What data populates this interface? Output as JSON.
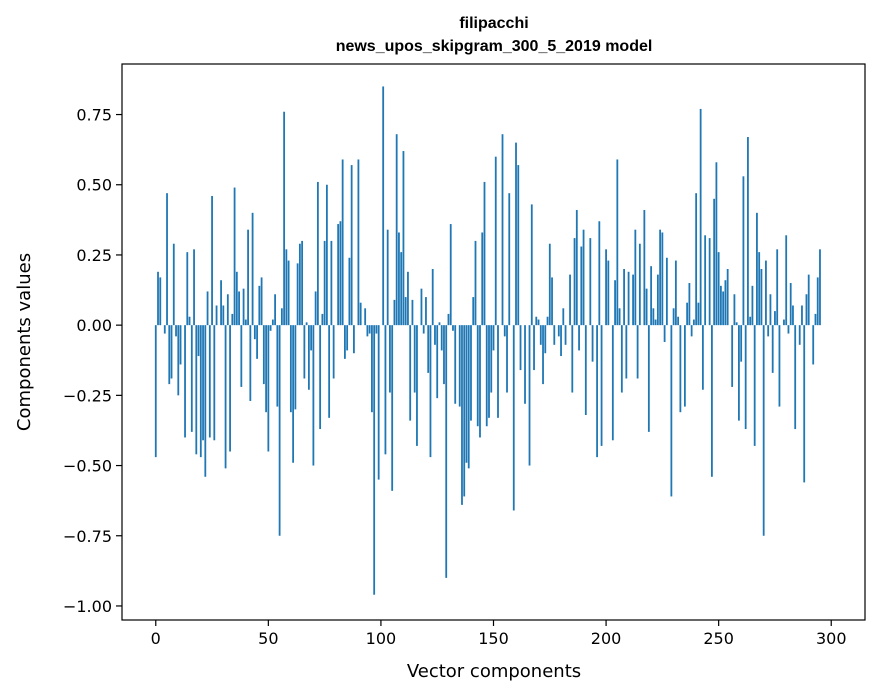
{
  "chart_data": {
    "type": "bar",
    "title": "filipacchi",
    "subtitle": "news_upos_skipgram_300_5_2019 model",
    "xlabel": "Vector components",
    "ylabel": "Components values",
    "xlim": [
      -15,
      315
    ],
    "ylim": [
      -1.05,
      0.93
    ],
    "xticks": [
      0,
      50,
      100,
      150,
      200,
      250,
      300
    ],
    "xtick_labels": [
      "0",
      "50",
      "100",
      "150",
      "200",
      "250",
      "300"
    ],
    "yticks": [
      0.75,
      0.5,
      0.25,
      0.0,
      -0.25,
      -0.5,
      -0.75,
      -1.0
    ],
    "ytick_labels": [
      "0.75",
      "0.50",
      "0.25",
      "0.00",
      "−0.25",
      "−0.50",
      "−0.75",
      "−1.00"
    ],
    "bar_color": "#1f77b4",
    "series": [
      {
        "name": "filipacchi",
        "values": [
          -0.47,
          0.19,
          0.17,
          0.0,
          -0.03,
          0.47,
          -0.21,
          -0.19,
          0.29,
          -0.04,
          -0.25,
          -0.14,
          0.0,
          -0.4,
          0.26,
          0.03,
          -0.38,
          0.27,
          -0.46,
          -0.11,
          -0.47,
          -0.41,
          -0.54,
          0.12,
          -0.4,
          0.46,
          -0.41,
          0.07,
          0.0,
          0.16,
          0.07,
          -0.51,
          0.11,
          -0.45,
          0.04,
          0.49,
          0.19,
          0.12,
          -0.22,
          0.13,
          0.02,
          0.34,
          -0.27,
          0.4,
          -0.05,
          -0.12,
          0.14,
          0.17,
          -0.21,
          -0.31,
          -0.45,
          -0.02,
          0.02,
          0.11,
          -0.29,
          -0.75,
          0.06,
          0.76,
          0.27,
          0.23,
          -0.31,
          -0.49,
          -0.3,
          0.22,
          0.29,
          0.3,
          -0.19,
          0.01,
          -0.23,
          -0.09,
          -0.5,
          0.12,
          0.51,
          -0.37,
          0.04,
          0.3,
          0.5,
          -0.33,
          0.3,
          -0.19,
          0.0,
          0.36,
          0.37,
          0.59,
          -0.12,
          -0.09,
          0.24,
          0.57,
          -0.1,
          0.0,
          0.59,
          0.08,
          0.0,
          0.06,
          -0.04,
          -0.03,
          -0.31,
          -0.96,
          -0.03,
          -0.55,
          0.0,
          0.85,
          -0.46,
          0.34,
          -0.24,
          -0.59,
          0.09,
          0.68,
          0.33,
          0.26,
          0.62,
          0.1,
          0.19,
          -0.34,
          0.09,
          -0.24,
          -0.43,
          0.0,
          0.13,
          -0.03,
          0.1,
          -0.17,
          -0.47,
          0.2,
          -0.07,
          -0.26,
          0.01,
          -0.09,
          -0.21,
          -0.9,
          0.04,
          0.36,
          -0.02,
          -0.28,
          0.0,
          -0.29,
          -0.64,
          -0.61,
          -0.49,
          -0.51,
          -0.34,
          0.1,
          0.3,
          -0.36,
          -0.4,
          0.33,
          0.51,
          -0.36,
          -0.33,
          -0.24,
          -0.09,
          0.6,
          -0.33,
          0.0,
          0.68,
          -0.04,
          -0.24,
          0.47,
          0.0,
          -0.66,
          0.65,
          0.57,
          -0.16,
          0.0,
          -0.28,
          0.0,
          -0.5,
          0.43,
          -0.16,
          0.03,
          0.02,
          -0.07,
          -0.21,
          -0.1,
          0.03,
          0.29,
          0.17,
          -0.07,
          0.0,
          -0.04,
          -0.11,
          0.06,
          -0.07,
          0.0,
          0.18,
          -0.24,
          0.31,
          0.41,
          -0.09,
          0.28,
          0.34,
          -0.32,
          0.0,
          0.31,
          -0.13,
          0.0,
          -0.47,
          0.37,
          -0.43,
          0.0,
          0.27,
          0.23,
          0.0,
          -0.41,
          0.16,
          0.59,
          0.06,
          -0.24,
          0.2,
          -0.19,
          0.19,
          0.0,
          0.18,
          0.34,
          -0.19,
          0.29,
          0.0,
          0.41,
          0.13,
          -0.38,
          0.21,
          0.06,
          0.02,
          0.18,
          0.34,
          0.33,
          -0.06,
          0.24,
          0.0,
          -0.61,
          0.06,
          0.23,
          0.03,
          -0.31,
          0.0,
          -0.29,
          0.08,
          0.15,
          -0.04,
          0.02,
          0.47,
          0.08,
          0.77,
          -0.23,
          0.32,
          0.0,
          0.31,
          -0.54,
          0.45,
          0.58,
          0.26,
          0.14,
          0.12,
          0.16,
          0.2,
          0.0,
          -0.22,
          0.11,
          0.01,
          -0.34,
          -0.13,
          0.53,
          -0.37,
          0.67,
          0.03,
          0.14,
          -0.43,
          0.4,
          0.26,
          0.2,
          -0.75,
          0.23,
          -0.04,
          0.11,
          -0.17,
          0.05,
          0.27,
          -0.29,
          0.0,
          0.02,
          0.32,
          -0.03,
          0.15,
          0.07,
          -0.37,
          0.0,
          -0.07,
          0.07,
          -0.56,
          0.11,
          0.18,
          0.0,
          -0.14,
          0.04,
          0.17,
          0.27
        ]
      }
    ]
  }
}
